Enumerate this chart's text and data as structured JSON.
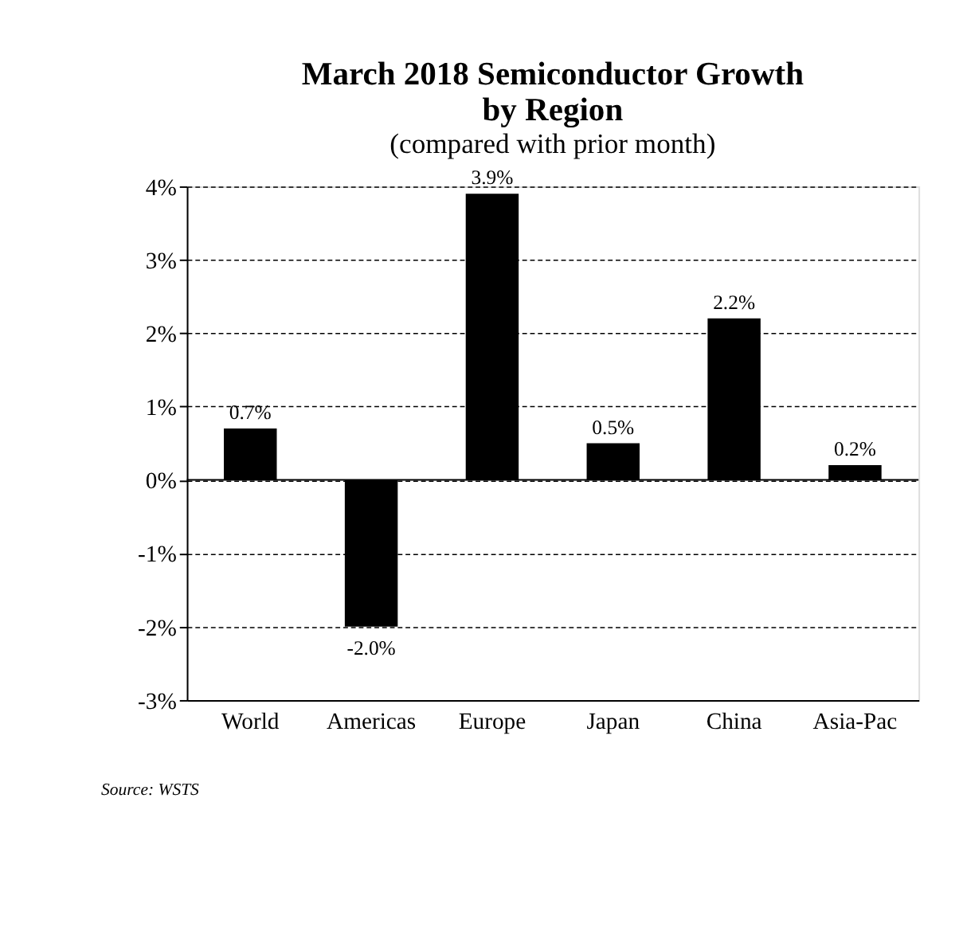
{
  "chart_data": {
    "type": "bar",
    "title": "March 2018 Semiconductor Growth\nby Region",
    "subtitle": "(compared with prior month)",
    "categories": [
      "World",
      "Americas",
      "Europe",
      "Japan",
      "China",
      "Asia-Pac"
    ],
    "values": [
      0.7,
      -2.0,
      3.9,
      0.5,
      2.2,
      0.2
    ],
    "value_labels": [
      "0.7%",
      "-2.0%",
      "3.9%",
      "0.5%",
      "2.2%",
      "0.2%"
    ],
    "color": "#000000",
    "ylim": [
      -3,
      4
    ],
    "yticks": [
      {
        "value": -3,
        "label": "-3%"
      },
      {
        "value": -2,
        "label": "-2%"
      },
      {
        "value": -1,
        "label": "-1%"
      },
      {
        "value": 0,
        "label": "0%"
      },
      {
        "value": 1,
        "label": "1%"
      },
      {
        "value": 2,
        "label": "2%"
      },
      {
        "value": 3,
        "label": "3%"
      },
      {
        "value": 4,
        "label": "4%"
      }
    ],
    "grid": "y",
    "line_style": "dashed",
    "ref_lines": [
      {
        "axis": "y",
        "value": 0,
        "label": null
      }
    ],
    "annotations": [
      "Source: WSTS"
    ]
  }
}
